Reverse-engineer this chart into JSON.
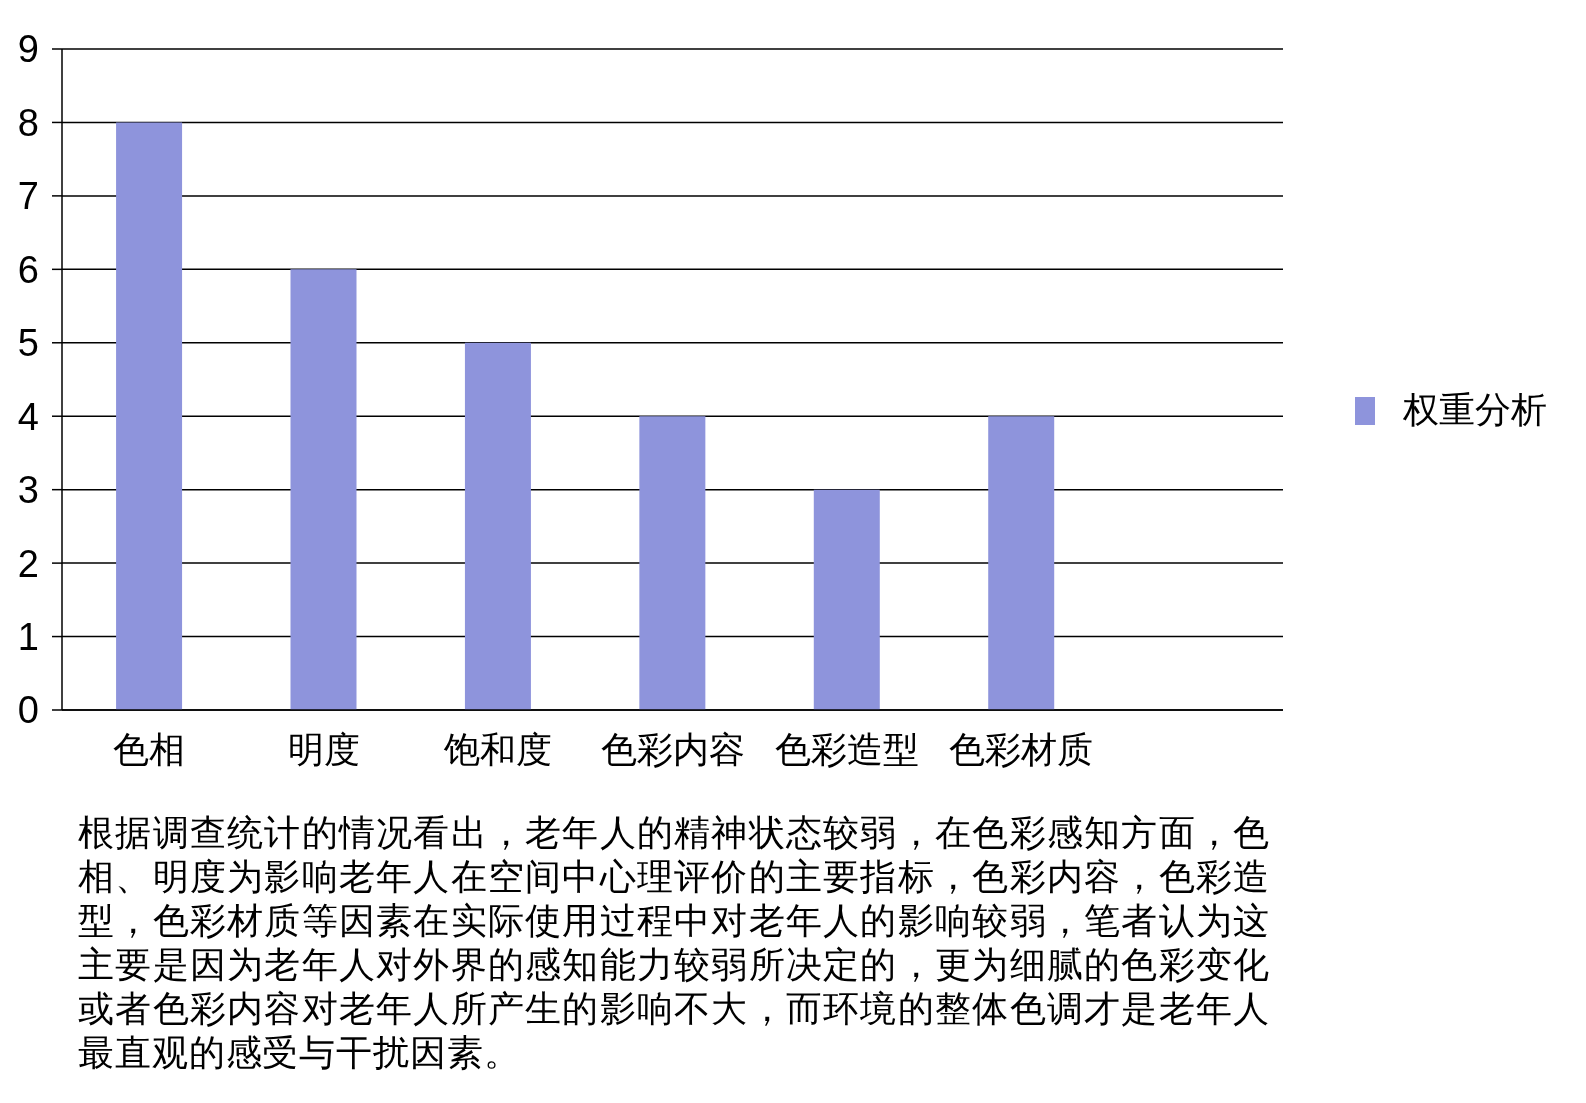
{
  "chart_data": {
    "type": "bar",
    "categories": [
      "色相",
      "明度",
      "饱和度",
      "色彩内容",
      "色彩造型",
      "色彩材质",
      null
    ],
    "series": [
      {
        "name": "权重分析",
        "color": "#8e94dc",
        "values": [
          8,
          6,
          5,
          4,
          3,
          4,
          null
        ]
      }
    ],
    "ylim": [
      0,
      9
    ],
    "yticks": [
      0,
      1,
      2,
      3,
      4,
      5,
      6,
      7,
      8,
      9
    ],
    "grid": "y",
    "legend": "right",
    "annotations": [
      "根据调查统计的情况看出，老年人的精神状态较弱，在色彩感知方面，色相、明度为影响老年人在空间中心理评价的主要指标，色彩内容，色彩造型，色彩材质等因素在实际使用过程中对老年人的影响较弱，笔者认为这主要是因为老年人对外界的感知能力较弱所决定的，更为细腻的色彩变化或者色彩内容对老年人所产生的影响不大，而环境的整体色调才是老年人最直观的感受与干扰因素。"
    ]
  }
}
